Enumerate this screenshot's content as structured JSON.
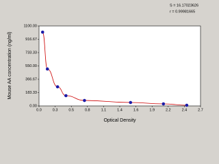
{
  "chart_data": {
    "type": "scatter",
    "annotations": [
      "S = 16.17023626",
      "r = 0.99981665"
    ],
    "x_label": "Optical Density",
    "y_label": "Mouse AA concentration (ng/ml)",
    "series": [
      {
        "color": "#1c1ca8",
        "line_color": "#cc0000",
        "x": [
          0.06,
          0.14,
          0.31,
          0.45,
          0.76,
          1.53,
          2.08,
          2.47
        ],
        "values": [
          1015,
          508,
          263,
          141,
          75,
          47,
          28,
          9
        ]
      }
    ],
    "xlim": [
      0,
      2.7
    ],
    "xticks": [
      {
        "value": 0,
        "label": "0.0"
      },
      {
        "value": 0.27,
        "label": "0.3"
      },
      {
        "value": 0.54,
        "label": "0.5"
      },
      {
        "value": 0.81,
        "label": "0.8"
      },
      {
        "value": 1.08,
        "label": "1.1"
      },
      {
        "value": 1.35,
        "label": "1.4"
      },
      {
        "value": 1.62,
        "label": "1.6"
      },
      {
        "value": 1.89,
        "label": "1.9"
      },
      {
        "value": 2.16,
        "label": "2.2"
      },
      {
        "value": 2.43,
        "label": "2.4"
      },
      {
        "value": 2.7,
        "label": "2.7"
      }
    ],
    "ylim": [
      0,
      1100
    ],
    "yticks": [
      {
        "value": 0,
        "label": "0.00"
      },
      {
        "value": 183.33,
        "label": "183.33"
      },
      {
        "value": 366.67,
        "label": "366.67"
      },
      {
        "value": 550,
        "label": "550.00"
      },
      {
        "value": 733.33,
        "label": "733.33"
      },
      {
        "value": 916.67,
        "label": "916.67"
      },
      {
        "value": 1100,
        "label": "1100.00"
      }
    ]
  }
}
